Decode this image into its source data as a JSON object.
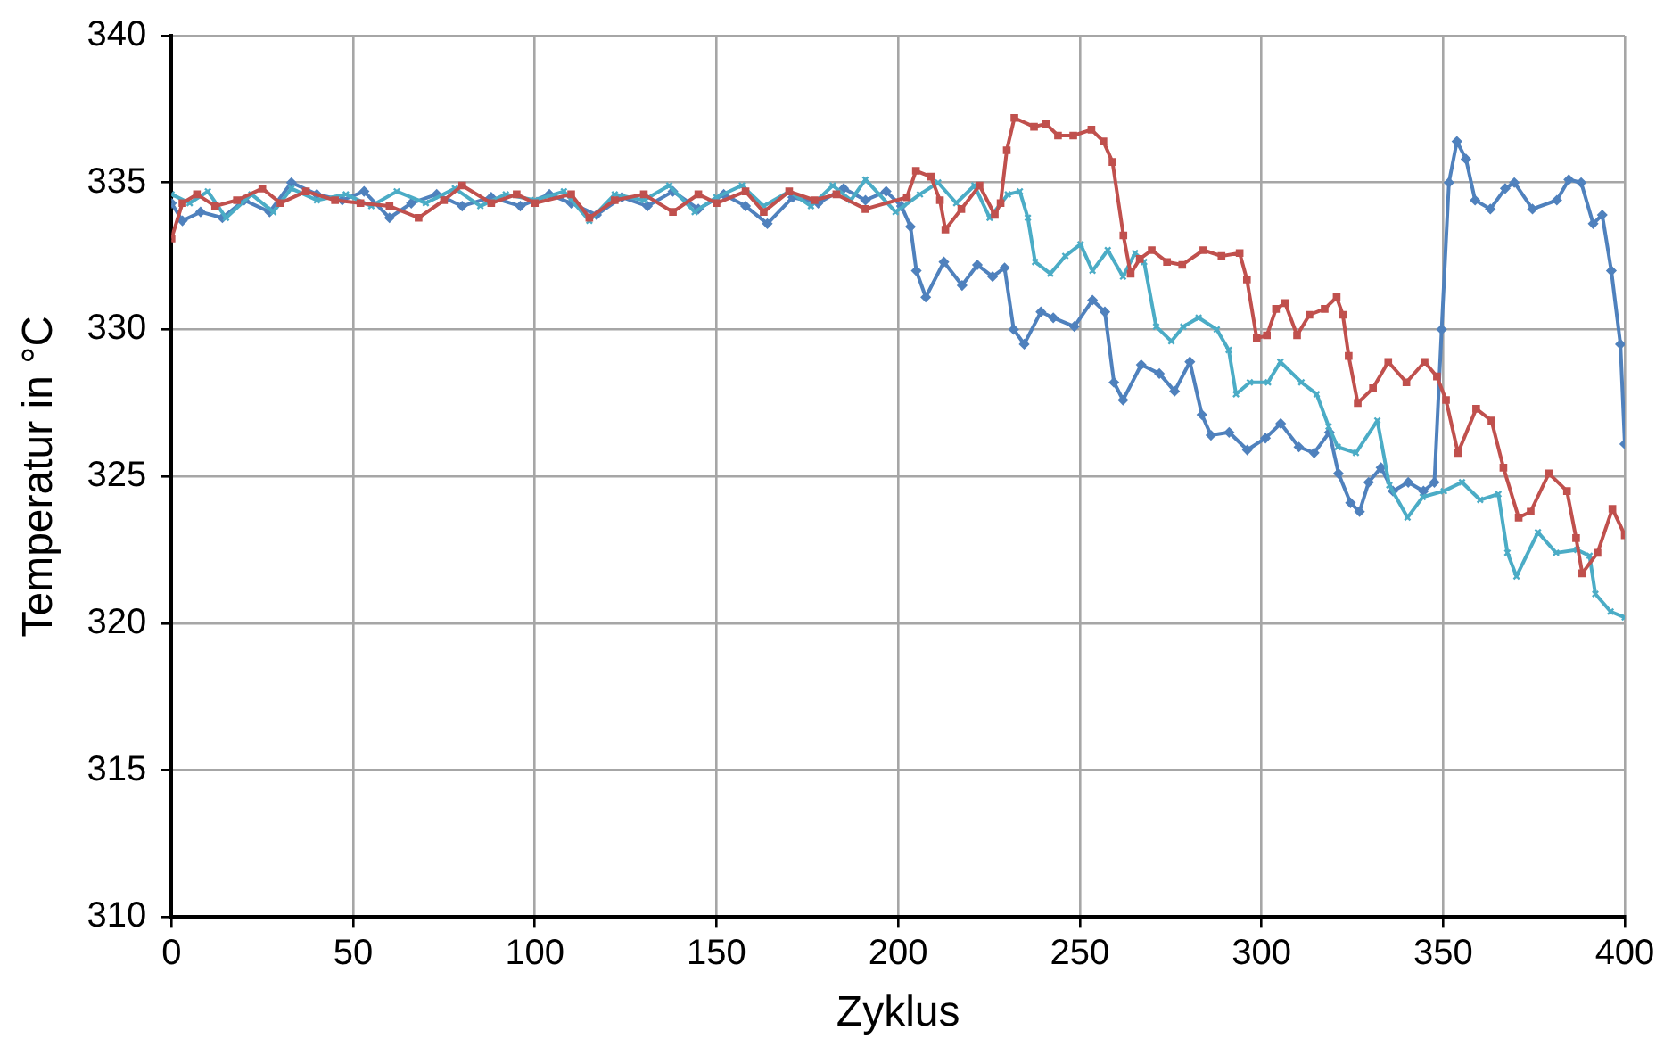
{
  "chart_data": {
    "type": "line",
    "xlabel": "Zyklus",
    "ylabel": "Temperatur in °C",
    "xlim": [
      0,
      400
    ],
    "xticks": [
      0,
      50,
      100,
      150,
      200,
      250,
      300,
      350,
      400
    ],
    "ylim": [
      310,
      340
    ],
    "yticks": [
      310,
      315,
      320,
      325,
      330,
      335,
      340
    ],
    "grid": true,
    "legend": false,
    "line_style": "solid",
    "series": [
      {
        "color": "#c0504d",
        "marker": "square",
        "x": [
          0,
          3,
          7,
          12,
          18,
          25,
          30,
          37,
          45,
          52,
          60,
          68,
          75,
          80,
          88,
          95,
          100,
          110,
          115,
          122,
          130,
          138,
          145,
          150,
          158,
          163,
          170,
          177,
          183,
          191,
          202.4,
          204.9,
          209,
          211.5,
          213,
          217.4,
          222.4,
          226.6,
          228.2,
          229.9,
          232,
          237.4,
          240.7,
          244,
          248.2,
          253.2,
          256.5,
          259,
          262,
          264,
          266.5,
          269.8,
          274,
          278.2,
          284,
          289,
          294,
          296,
          298.7,
          301.5,
          304,
          306.5,
          309.8,
          313.2,
          317.4,
          320.7,
          322.4,
          324,
          326.5,
          330.7,
          334.9,
          339.9,
          344.9,
          348.3,
          350.8,
          354.1,
          359.1,
          363.3,
          366.6,
          370.8,
          374.1,
          379.1,
          384.1,
          386.6,
          388.3,
          392.5,
          396.6,
          400
        ],
        "values": [
          333.1,
          334.3,
          334.6,
          334.2,
          334.4,
          334.8,
          334.3,
          334.7,
          334.4,
          334.3,
          334.2,
          333.8,
          334.4,
          334.9,
          334.3,
          334.6,
          334.3,
          334.6,
          333.8,
          334.4,
          334.6,
          334.0,
          334.6,
          334.3,
          334.7,
          334.0,
          334.7,
          334.4,
          334.6,
          334.1,
          334.5,
          335.4,
          335.2,
          334.4,
          333.4,
          334.1,
          334.9,
          333.9,
          334.3,
          336.1,
          337.2,
          336.9,
          337.0,
          336.6,
          336.6,
          336.8,
          336.4,
          335.7,
          333.2,
          331.9,
          332.4,
          332.7,
          332.3,
          332.2,
          332.7,
          332.5,
          332.6,
          331.7,
          329.7,
          329.8,
          330.7,
          330.9,
          329.8,
          330.5,
          330.7,
          331.1,
          330.5,
          329.1,
          327.5,
          328.0,
          328.9,
          328.2,
          328.9,
          328.4,
          327.6,
          325.8,
          327.3,
          326.9,
          325.3,
          323.6,
          323.8,
          325.1,
          324.5,
          322.9,
          321.7,
          322.4,
          323.9,
          323.0
        ]
      },
      {
        "color": "#4bacc6",
        "marker": "cross",
        "x": [
          0,
          5,
          10,
          15,
          22,
          28,
          33,
          40,
          48,
          55,
          62,
          70,
          78,
          85,
          92,
          100,
          108,
          115,
          122,
          130,
          137,
          144,
          150,
          157,
          163,
          170,
          176,
          182,
          187,
          191,
          199.3,
          206,
          211,
          216,
          221,
          225.2,
          230.2,
          233.5,
          235.7,
          237.7,
          241.9,
          246,
          250.2,
          253.5,
          257.7,
          261.9,
          265.2,
          267.7,
          271,
          275.2,
          278.5,
          282.7,
          287.7,
          291,
          293,
          296.8,
          301.8,
          305.2,
          311,
          315.2,
          318.5,
          321,
          326,
          331.9,
          335.2,
          340.2,
          344.4,
          350.2,
          355.2,
          360.2,
          365.2,
          367.7,
          370.2,
          376.1,
          381.1,
          386.9,
          390.3,
          391.9,
          396.1,
          400
        ],
        "values": [
          334.6,
          334.3,
          334.7,
          333.8,
          334.6,
          334.0,
          334.8,
          334.4,
          334.6,
          334.2,
          334.7,
          334.3,
          334.8,
          334.2,
          334.6,
          334.4,
          334.7,
          333.7,
          334.6,
          334.4,
          334.9,
          334.0,
          334.5,
          334.9,
          334.2,
          334.7,
          334.2,
          334.9,
          334.4,
          335.1,
          334.0,
          334.6,
          335.0,
          334.3,
          334.9,
          333.8,
          334.6,
          334.7,
          333.8,
          332.3,
          331.9,
          332.5,
          332.9,
          332.0,
          332.7,
          331.8,
          332.6,
          332.3,
          330.1,
          329.6,
          330.1,
          330.4,
          330.0,
          329.3,
          327.8,
          328.2,
          328.2,
          328.9,
          328.2,
          327.8,
          326.7,
          326.0,
          325.8,
          326.9,
          324.7,
          323.6,
          324.3,
          324.5,
          324.8,
          324.2,
          324.4,
          322.4,
          321.6,
          323.1,
          322.4,
          322.5,
          322.3,
          321.0,
          320.4,
          320.2
        ]
      },
      {
        "color": "#4f81bd",
        "marker": "diamond",
        "x": [
          0,
          3,
          8,
          14,
          20,
          27,
          33,
          40,
          47,
          53,
          60,
          66,
          73,
          80,
          88,
          96,
          104,
          110,
          117,
          124,
          131,
          138,
          145,
          152,
          158,
          164,
          171,
          178,
          185,
          191,
          196.7,
          200.9,
          203.4,
          205,
          207.6,
          212.6,
          217.6,
          221.8,
          226,
          229.3,
          231.8,
          234.7,
          239.3,
          242.7,
          248.5,
          253.5,
          256.9,
          259.4,
          261.9,
          266.9,
          271.9,
          276.1,
          280.3,
          283.6,
          286.1,
          291.1,
          296.1,
          301.1,
          305.3,
          310.3,
          314.5,
          318.7,
          321.2,
          324.5,
          327,
          329.5,
          332.9,
          336.2,
          340.4,
          344.6,
          347.6,
          349.6,
          351.6,
          353.8,
          356.3,
          358.8,
          363,
          367.1,
          369.6,
          374.6,
          381.3,
          384.6,
          388,
          391.3,
          393.8,
          396.3,
          398.8,
          400
        ],
        "values": [
          334.3,
          333.7,
          334.0,
          333.8,
          334.4,
          334.0,
          335.0,
          334.6,
          334.4,
          334.7,
          333.8,
          334.3,
          334.6,
          334.2,
          334.5,
          334.2,
          334.6,
          334.3,
          333.9,
          334.5,
          334.2,
          334.7,
          334.1,
          334.6,
          334.2,
          333.6,
          334.5,
          334.3,
          334.8,
          334.4,
          334.7,
          334.2,
          333.5,
          332.0,
          331.1,
          332.3,
          331.5,
          332.2,
          331.8,
          332.1,
          330.0,
          329.5,
          330.6,
          330.4,
          330.1,
          331.0,
          330.6,
          328.2,
          327.6,
          328.8,
          328.5,
          327.9,
          328.9,
          327.1,
          326.4,
          326.5,
          325.9,
          326.3,
          326.8,
          326.0,
          325.8,
          326.5,
          325.1,
          324.1,
          323.8,
          324.8,
          325.3,
          324.5,
          324.8,
          324.5,
          324.8,
          330.0,
          335.0,
          336.4,
          335.8,
          334.4,
          334.1,
          334.8,
          335.0,
          334.1,
          334.4,
          335.1,
          335.0,
          333.6,
          333.9,
          332.0,
          329.5,
          326.1
        ]
      }
    ]
  }
}
